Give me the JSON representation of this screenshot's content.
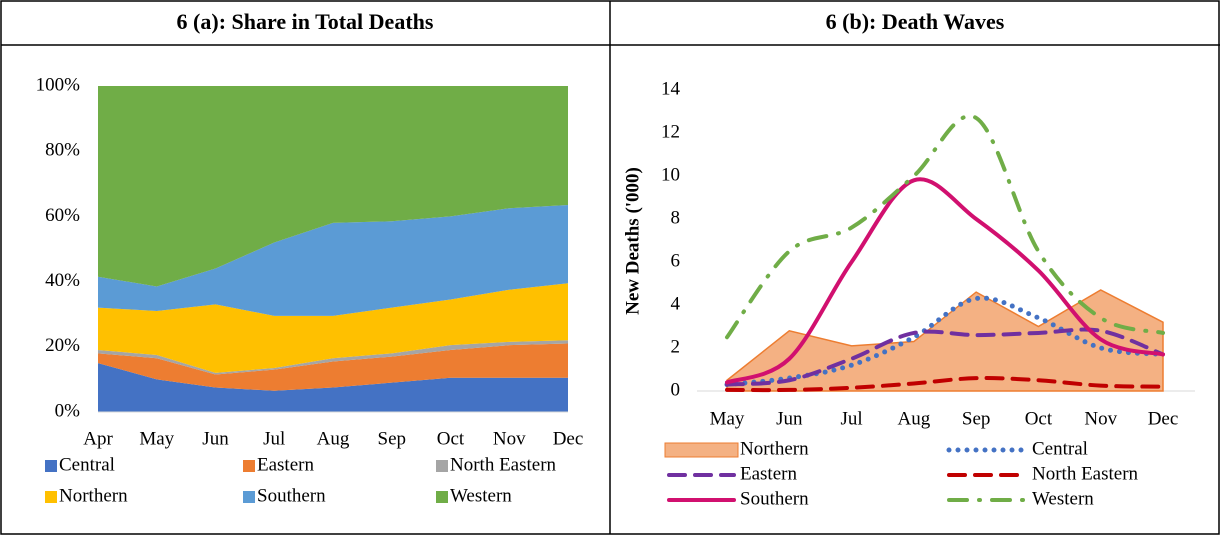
{
  "chart_data": [
    {
      "type": "area",
      "title": "6 (a): Share in Total Deaths",
      "categories": [
        "Apr",
        "May",
        "Jun",
        "Jul",
        "Aug",
        "Sep",
        "Oct",
        "Nov",
        "Dec"
      ],
      "stacked": true,
      "series": [
        {
          "name": "Central",
          "color": "#4472c4",
          "values": [
            15,
            10,
            7.5,
            6.5,
            7.5,
            9,
            10.5,
            10.5,
            10.5
          ]
        },
        {
          "name": "Eastern",
          "color": "#ed7d31",
          "values": [
            3,
            6.5,
            4,
            6.5,
            8,
            8,
            8.5,
            10,
            10.5
          ]
        },
        {
          "name": "North Eastern",
          "color": "#a5a5a5",
          "values": [
            1,
            1,
            0.5,
            0.5,
            1,
            1,
            1.5,
            1,
            1
          ]
        },
        {
          "name": "Northern",
          "color": "#ffc000",
          "values": [
            13,
            13.5,
            21,
            16,
            13,
            14,
            14,
            16,
            17.5
          ]
        },
        {
          "name": "Southern",
          "color": "#5b9bd5",
          "values": [
            9.5,
            7.5,
            11,
            22.5,
            28.5,
            26.5,
            25.5,
            25,
            24
          ]
        },
        {
          "name": "Western",
          "color": "#70ad47",
          "values": [
            58.5,
            61.5,
            56,
            48,
            42,
            41.5,
            40,
            37.5,
            36.5
          ]
        }
      ],
      "ylim": [
        0,
        100
      ],
      "yticks": [
        {
          "value": 0,
          "label": "0%"
        },
        {
          "value": 20,
          "label": "20%"
        },
        {
          "value": 40,
          "label": "40%"
        },
        {
          "value": 60,
          "label": "60%"
        },
        {
          "value": 80,
          "label": "80%"
        },
        {
          "value": 100,
          "label": "100%"
        }
      ],
      "legend": "bottom"
    },
    {
      "type": "line",
      "title": "6 (b): Death Waves",
      "y_label": "New Deaths ('000)",
      "categories": [
        "May",
        "Jun",
        "Jul",
        "Aug",
        "Sep",
        "Oct",
        "Nov",
        "Dec"
      ],
      "series": [
        {
          "name": "Northern",
          "color": "#ed7d31",
          "fill": "#f4b183",
          "style": "area",
          "values": [
            0.5,
            2.8,
            2.1,
            2.3,
            4.6,
            3.0,
            4.7,
            3.2
          ]
        },
        {
          "name": "Central",
          "color": "#4472c4",
          "style": "dotted",
          "smooth": true,
          "values": [
            0.3,
            0.6,
            1.2,
            2.5,
            4.3,
            3.4,
            2.0,
            1.7
          ]
        },
        {
          "name": "Eastern",
          "color": "#7030a0",
          "style": "dashed",
          "smooth": true,
          "values": [
            0.3,
            0.5,
            1.5,
            2.7,
            2.6,
            2.7,
            2.8,
            1.7
          ]
        },
        {
          "name": "North Eastern",
          "color": "#c00000",
          "style": "dashed",
          "smooth": true,
          "values": [
            0.05,
            0.05,
            0.15,
            0.35,
            0.6,
            0.5,
            0.25,
            0.2
          ]
        },
        {
          "name": "Southern",
          "color": "#d1106f",
          "style": "solid",
          "smooth": true,
          "values": [
            0.4,
            1.5,
            6.0,
            9.8,
            8.0,
            5.6,
            2.4,
            1.7
          ]
        },
        {
          "name": "Western",
          "color": "#70ad47",
          "style": "dashdot",
          "smooth": true,
          "values": [
            2.5,
            6.5,
            7.6,
            10.0,
            12.7,
            6.5,
            3.4,
            2.7
          ]
        }
      ],
      "ylim": [
        0,
        14
      ],
      "yticks": [
        0,
        2,
        4,
        6,
        8,
        10,
        12,
        14
      ],
      "legend": "bottom"
    }
  ]
}
